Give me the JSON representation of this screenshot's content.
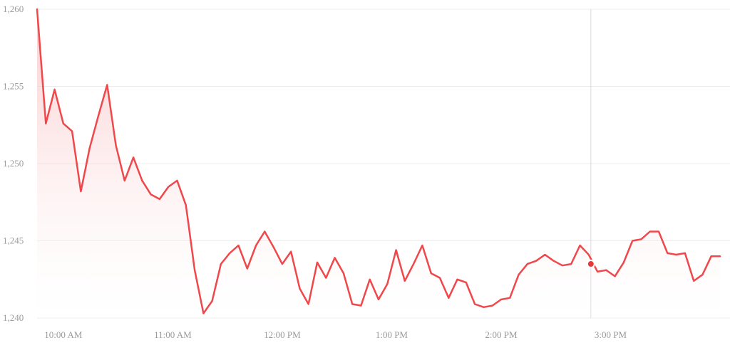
{
  "colors": {
    "line": "#f0474b",
    "area_top": "#f7a8aa",
    "area_bottom": "#ffffff",
    "grid": "#ececec",
    "crosshair": "#d9d9d9",
    "tick_text": "#9a9a9a",
    "marker": "#e8363b"
  },
  "chart_data": {
    "type": "area",
    "title": "",
    "xlabel": "",
    "ylabel": "",
    "grid": true,
    "legend": "none",
    "ylim": [
      1240,
      1260
    ],
    "y_ticks": [
      1240,
      1245,
      1250,
      1255,
      1260
    ],
    "y_tick_labels": [
      "1,240",
      "1,245",
      "1,250",
      "1,255",
      "1,260"
    ],
    "xlim": [
      9.76,
      16.0
    ],
    "x_ticks": [
      10,
      11,
      12,
      13,
      14,
      15
    ],
    "x_tick_labels": [
      "10:00 AM",
      "11:00 AM",
      "12:00 PM",
      "1:00 PM",
      "2:00 PM",
      "3:00 PM"
    ],
    "highlight": {
      "x": 14.82,
      "y": 1243.5
    },
    "series": [
      {
        "x": [
          9.76,
          9.84,
          9.92,
          10.0,
          10.08,
          10.16,
          10.24,
          10.32,
          10.4,
          10.48,
          10.56,
          10.64,
          10.72,
          10.8,
          10.88,
          10.96,
          11.04,
          11.12,
          11.2,
          11.28,
          11.36,
          11.44,
          11.52,
          11.6,
          11.68,
          11.76,
          11.84,
          11.92,
          12.0,
          12.08,
          12.16,
          12.24,
          12.32,
          12.4,
          12.48,
          12.56,
          12.64,
          12.72,
          12.8,
          12.88,
          12.96,
          13.04,
          13.12,
          13.2,
          13.28,
          13.36,
          13.44,
          13.52,
          13.6,
          13.68,
          13.76,
          13.84,
          13.92,
          14.0,
          14.08,
          14.16,
          14.24,
          14.32,
          14.4,
          14.48,
          14.56,
          14.64,
          14.72,
          14.8,
          14.88,
          14.96,
          15.04,
          15.12,
          15.2,
          15.28,
          15.36,
          15.44,
          15.52,
          15.6,
          15.68,
          15.76,
          15.84,
          15.92,
          16.0
        ],
        "values": [
          1260,
          1252.6,
          1254.8,
          1252.6,
          1252.1,
          1248.2,
          1251.0,
          1253.1,
          1255.1,
          1251.2,
          1248.9,
          1250.4,
          1248.9,
          1248.0,
          1247.7,
          1248.5,
          1248.9,
          1247.3,
          1243.1,
          1240.3,
          1241.1,
          1243.5,
          1244.2,
          1244.7,
          1243.2,
          1244.7,
          1245.6,
          1244.6,
          1243.5,
          1244.3,
          1241.9,
          1240.9,
          1243.6,
          1242.6,
          1243.9,
          1242.9,
          1240.9,
          1240.8,
          1242.5,
          1241.2,
          1242.2,
          1244.4,
          1242.4,
          1243.5,
          1244.7,
          1242.9,
          1242.6,
          1241.3,
          1242.5,
          1242.3,
          1240.9,
          1240.7,
          1240.8,
          1241.2,
          1241.3,
          1242.8,
          1243.5,
          1243.7,
          1244.1,
          1243.7,
          1243.4,
          1243.5,
          1244.7,
          1244.1,
          1243.0,
          1243.1,
          1242.7,
          1243.6,
          1245.0,
          1245.1,
          1245.6,
          1245.6,
          1244.2,
          1244.1,
          1244.2,
          1242.4,
          1242.8,
          1244.0,
          1244.0
        ]
      }
    ]
  }
}
